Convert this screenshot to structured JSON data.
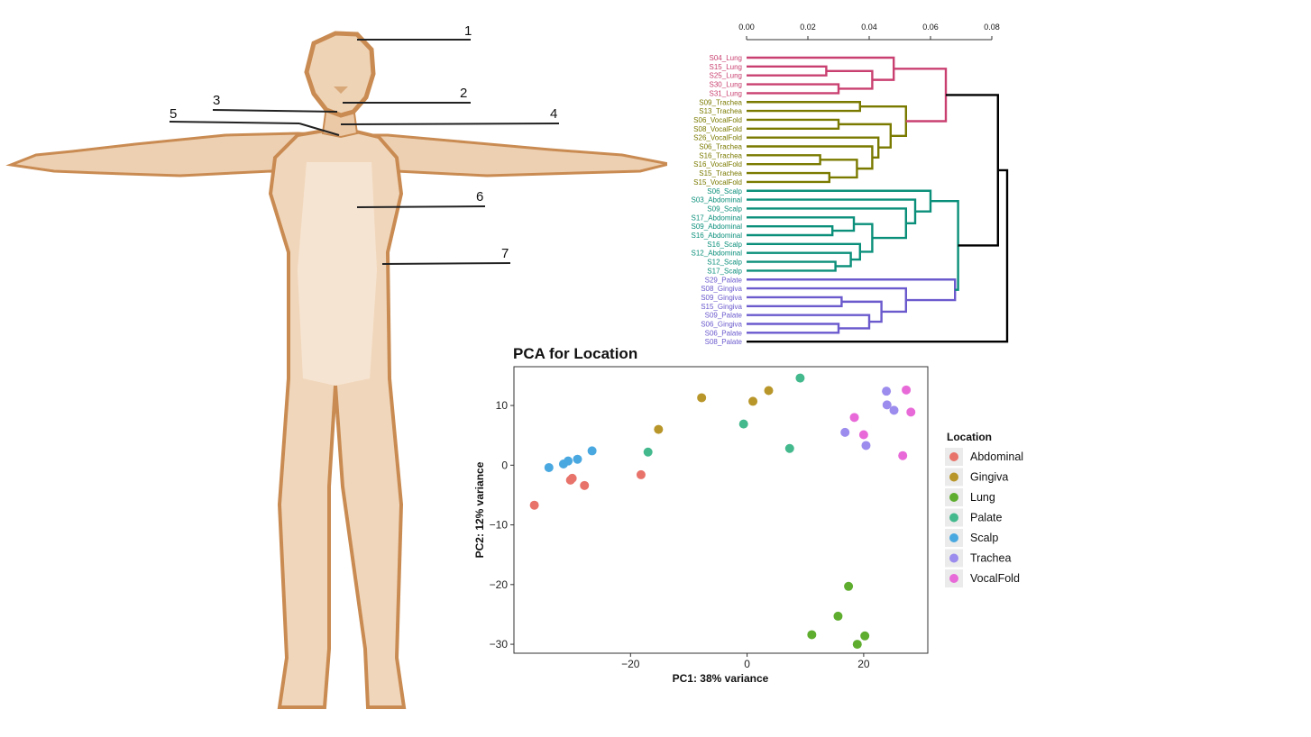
{
  "figure": {
    "body_callouts": [
      "1",
      "2",
      "3",
      "4",
      "5",
      "6",
      "7"
    ],
    "colors": {
      "Lung": "#c94070",
      "Trachea_VocalFold": "#7a7a00",
      "Scalp_Abdominal": "#0a8f7a",
      "Palate_Gingiva": "#6a5acd",
      "root": "#000000",
      "skin_light": "#f3dcc3",
      "skin_dark": "#c98b52"
    }
  },
  "dendrogram": {
    "axis_ticks": [
      "0.00",
      "0.02",
      "0.04",
      "0.06",
      "0.08"
    ],
    "axis_range": [
      0,
      0.08
    ],
    "leaves": [
      {
        "label": "S04_Lung",
        "group": "Lung"
      },
      {
        "label": "S15_Lung",
        "group": "Lung"
      },
      {
        "label": "S25_Lung",
        "group": "Lung"
      },
      {
        "label": "S30_Lung",
        "group": "Lung"
      },
      {
        "label": "S31_Lung",
        "group": "Lung"
      },
      {
        "label": "S09_Trachea",
        "group": "Trachea_VocalFold"
      },
      {
        "label": "S13_Trachea",
        "group": "Trachea_VocalFold"
      },
      {
        "label": "S06_VocalFold",
        "group": "Trachea_VocalFold"
      },
      {
        "label": "S08_VocalFold",
        "group": "Trachea_VocalFold"
      },
      {
        "label": "S26_VocalFold",
        "group": "Trachea_VocalFold"
      },
      {
        "label": "S06_Trachea",
        "group": "Trachea_VocalFold"
      },
      {
        "label": "S16_Trachea",
        "group": "Trachea_VocalFold"
      },
      {
        "label": "S16_VocalFold",
        "group": "Trachea_VocalFold"
      },
      {
        "label": "S15_Trachea",
        "group": "Trachea_VocalFold"
      },
      {
        "label": "S15_VocalFold",
        "group": "Trachea_VocalFold"
      },
      {
        "label": "S06_Scalp",
        "group": "Scalp_Abdominal"
      },
      {
        "label": "S03_Abdominal",
        "group": "Scalp_Abdominal"
      },
      {
        "label": "S09_Scalp",
        "group": "Scalp_Abdominal"
      },
      {
        "label": "S17_Abdominal",
        "group": "Scalp_Abdominal"
      },
      {
        "label": "S09_Abdominal",
        "group": "Scalp_Abdominal"
      },
      {
        "label": "S16_Abdominal",
        "group": "Scalp_Abdominal"
      },
      {
        "label": "S16_Scalp",
        "group": "Scalp_Abdominal"
      },
      {
        "label": "S12_Abdominal",
        "group": "Scalp_Abdominal"
      },
      {
        "label": "S12_Scalp",
        "group": "Scalp_Abdominal"
      },
      {
        "label": "S17_Scalp",
        "group": "Scalp_Abdominal"
      },
      {
        "label": "S29_Palate",
        "group": "Palate_Gingiva"
      },
      {
        "label": "S08_Gingiva",
        "group": "Palate_Gingiva"
      },
      {
        "label": "S09_Gingiva",
        "group": "Palate_Gingiva"
      },
      {
        "label": "S15_Gingiva",
        "group": "Palate_Gingiva"
      },
      {
        "label": "S09_Palate",
        "group": "Palate_Gingiva"
      },
      {
        "label": "S06_Gingiva",
        "group": "Palate_Gingiva"
      },
      {
        "label": "S06_Palate",
        "group": "Palate_Gingiva"
      },
      {
        "label": "S08_Palate",
        "group": "Palate_Gingiva"
      }
    ],
    "merges": [
      {
        "id": "a1",
        "a": 1,
        "b": 2,
        "h": 0.026,
        "group": "Lung"
      },
      {
        "id": "a2",
        "a": 3,
        "b": 4,
        "h": 0.03,
        "group": "Lung"
      },
      {
        "id": "a3",
        "a": "a1",
        "b": "a2",
        "h": 0.041,
        "group": "Lung"
      },
      {
        "id": "a4",
        "a": 0,
        "b": "a3",
        "h": 0.048,
        "group": "Lung"
      },
      {
        "id": "b1",
        "a": 7,
        "b": 8,
        "h": 0.03,
        "group": "Trachea_VocalFold"
      },
      {
        "id": "b2",
        "a": 11,
        "b": 12,
        "h": 0.024,
        "group": "Trachea_VocalFold"
      },
      {
        "id": "b3",
        "a": 13,
        "b": 14,
        "h": 0.027,
        "group": "Trachea_VocalFold"
      },
      {
        "id": "b4",
        "a": "b2",
        "b": "b3",
        "h": 0.036,
        "group": "Trachea_VocalFold"
      },
      {
        "id": "b5",
        "a": 10,
        "b": "b4",
        "h": 0.041,
        "group": "Trachea_VocalFold"
      },
      {
        "id": "b6",
        "a": 9,
        "b": "b5",
        "h": 0.043,
        "group": "Trachea_VocalFold"
      },
      {
        "id": "b7",
        "a": "b1",
        "b": "b6",
        "h": 0.047,
        "group": "Trachea_VocalFold"
      },
      {
        "id": "b8",
        "a": 5,
        "b": 6,
        "h": 0.037,
        "group": "Trachea_VocalFold"
      },
      {
        "id": "b9",
        "a": "b8",
        "b": "b7",
        "h": 0.052,
        "group": "Trachea_VocalFold"
      },
      {
        "id": "r1",
        "a": "a4",
        "b": "b9",
        "h": 0.065,
        "group": "Lung"
      },
      {
        "id": "c1",
        "a": 19,
        "b": 20,
        "h": 0.028,
        "group": "Scalp_Abdominal"
      },
      {
        "id": "c2",
        "a": 18,
        "b": "c1",
        "h": 0.035,
        "group": "Scalp_Abdominal"
      },
      {
        "id": "c3",
        "a": 23,
        "b": 24,
        "h": 0.029,
        "group": "Scalp_Abdominal"
      },
      {
        "id": "c4",
        "a": 22,
        "b": "c3",
        "h": 0.034,
        "group": "Scalp_Abdominal"
      },
      {
        "id": "c5",
        "a": 21,
        "b": "c4",
        "h": 0.037,
        "group": "Scalp_Abdominal"
      },
      {
        "id": "c6",
        "a": "c2",
        "b": "c5",
        "h": 0.041,
        "group": "Scalp_Abdominal"
      },
      {
        "id": "c7",
        "a": 17,
        "b": "c6",
        "h": 0.052,
        "group": "Scalp_Abdominal"
      },
      {
        "id": "c8",
        "a": 16,
        "b": "c7",
        "h": 0.055,
        "group": "Scalp_Abdominal"
      },
      {
        "id": "c9",
        "a": 15,
        "b": "c8",
        "h": 0.06,
        "group": "Scalp_Abdominal"
      },
      {
        "id": "d1",
        "a": 27,
        "b": 28,
        "h": 0.031,
        "group": "Palate_Gingiva"
      },
      {
        "id": "d2",
        "a": 30,
        "b": 31,
        "h": 0.03,
        "group": "Palate_Gingiva"
      },
      {
        "id": "d3",
        "a": 29,
        "b": "d2",
        "h": 0.04,
        "group": "Palate_Gingiva"
      },
      {
        "id": "d4",
        "a": "d1",
        "b": "d3",
        "h": 0.044,
        "group": "Palate_Gingiva"
      },
      {
        "id": "d5",
        "a": 26,
        "b": "d4",
        "h": 0.052,
        "group": "Palate_Gingiva"
      },
      {
        "id": "d6",
        "a": 25,
        "b": "d5",
        "h": 0.068,
        "group": "Palate_Gingiva"
      },
      {
        "id": "e1",
        "a": "c9",
        "b": "d6",
        "h": 0.069,
        "group": "Scalp_Abdominal"
      },
      {
        "id": "e2",
        "a": "r1",
        "b": "e1",
        "h": 0.082,
        "group": "root"
      },
      {
        "id": "e3",
        "a": "e2",
        "b": 32,
        "h": 0.085,
        "group": "root"
      }
    ]
  },
  "chart_data": {
    "type": "scatter",
    "title": "PCA for Location",
    "xlabel": "PC1: 38% variance",
    "ylabel": "PC2: 12% variance",
    "xlim": [
      -40,
      31
    ],
    "ylim": [
      -31.5,
      16.5
    ],
    "xticks": [
      -20,
      0,
      20
    ],
    "yticks": [
      10,
      0,
      -10,
      -20,
      -30
    ],
    "xtick_labels": [
      "−20",
      "0",
      "20"
    ],
    "ytick_labels": [
      "10",
      "0",
      "−10",
      "−20",
      "−30"
    ],
    "grid": false,
    "legend": {
      "title": "Location",
      "position": "right",
      "items": [
        {
          "name": "Abdominal",
          "color": "#e8736b"
        },
        {
          "name": "Gingiva",
          "color": "#b8962a"
        },
        {
          "name": "Lung",
          "color": "#5fad2f"
        },
        {
          "name": "Palate",
          "color": "#44b98e"
        },
        {
          "name": "Scalp",
          "color": "#4aa8e0"
        },
        {
          "name": "Trachea",
          "color": "#9c8ced"
        },
        {
          "name": "VocalFold",
          "color": "#e86ad8"
        }
      ]
    },
    "series": [
      {
        "name": "Abdominal",
        "points": [
          [
            -36.5,
            -6.7
          ],
          [
            -30,
            -2.2
          ],
          [
            -30.3,
            -2.5
          ],
          [
            -27.9,
            -3.4
          ],
          [
            -18.2,
            -1.6
          ]
        ]
      },
      {
        "name": "Gingiva",
        "points": [
          [
            -15.2,
            6
          ],
          [
            -7.8,
            11.3
          ],
          [
            1,
            10.7
          ],
          [
            3.7,
            12.5
          ]
        ]
      },
      {
        "name": "Lung",
        "points": [
          [
            11.1,
            -28.4
          ],
          [
            15.6,
            -25.3
          ],
          [
            17.4,
            -20.3
          ],
          [
            18.9,
            -30
          ],
          [
            20.2,
            -28.6
          ]
        ]
      },
      {
        "name": "Palate",
        "points": [
          [
            -17,
            2.2
          ],
          [
            -0.6,
            6.9
          ],
          [
            7.3,
            2.8
          ],
          [
            9.1,
            14.6
          ]
        ]
      },
      {
        "name": "Scalp",
        "points": [
          [
            -34,
            -0.4
          ],
          [
            -31.5,
            0.2
          ],
          [
            -30.7,
            0.7
          ],
          [
            -29.1,
            1
          ],
          [
            -26.6,
            2.4
          ]
        ]
      },
      {
        "name": "Trachea",
        "points": [
          [
            16.8,
            5.5
          ],
          [
            20.4,
            3.3
          ],
          [
            23.9,
            12.4
          ],
          [
            24,
            10.1
          ],
          [
            25.2,
            9.2
          ]
        ]
      },
      {
        "name": "VocalFold",
        "points": [
          [
            18.4,
            8
          ],
          [
            20,
            5.1
          ],
          [
            26.7,
            1.6
          ],
          [
            27.3,
            12.6
          ],
          [
            28.1,
            8.9
          ]
        ]
      }
    ]
  }
}
